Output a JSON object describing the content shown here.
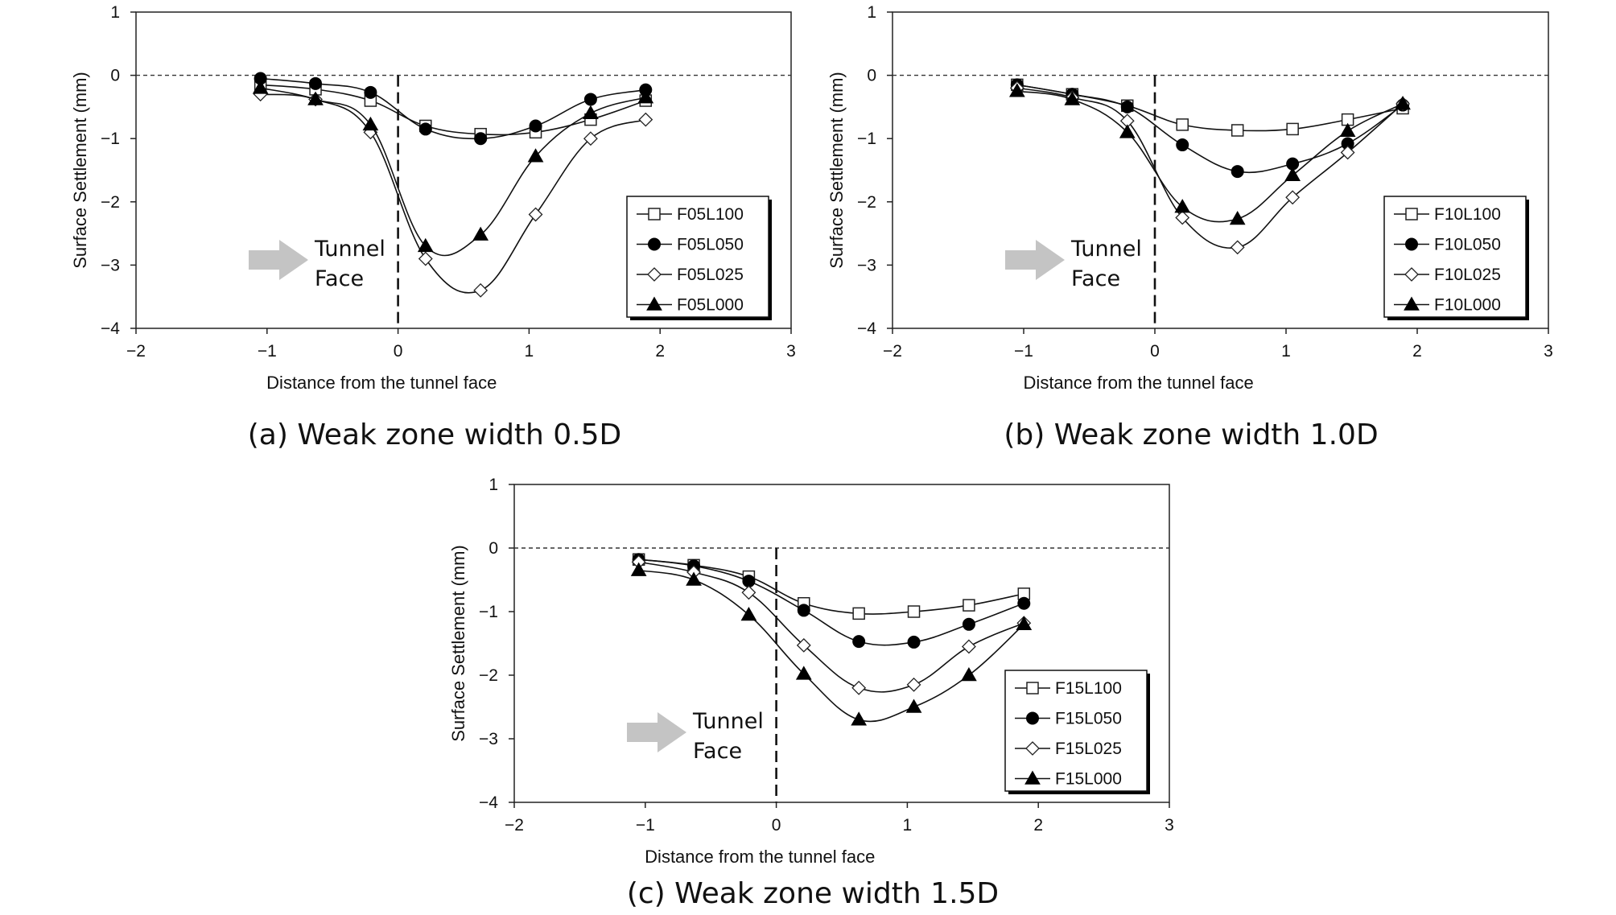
{
  "chart_data": [
    {
      "type": "line",
      "caption": "(a) Weak zone width 0.5D",
      "xlabel": "Distance from the tunnel face",
      "ylabel": "Surface Settlement (mm)",
      "xlim": [
        -2,
        3
      ],
      "ylim": [
        -4,
        1
      ],
      "xticks": [
        "-2",
        "-1",
        "0",
        "1",
        "2",
        "3"
      ],
      "yticks": [
        "-4",
        "-3",
        "-2",
        "-1",
        "0",
        "1"
      ],
      "reference_lines": {
        "y0_dashed": true,
        "x0_dashed": true
      },
      "annotation": {
        "line1": "Tunnel",
        "line2": "Face"
      },
      "legend_position": "lower-right",
      "x": [
        -1.05,
        -0.63,
        -0.21,
        0.21,
        0.63,
        1.05,
        1.47,
        1.89
      ],
      "series": [
        {
          "name": "F05L100",
          "marker": "square-open",
          "values": [
            -0.15,
            -0.22,
            -0.4,
            -0.8,
            -0.93,
            -0.9,
            -0.7,
            -0.4
          ]
        },
        {
          "name": "F05L050",
          "marker": "circle-filled",
          "values": [
            -0.05,
            -0.13,
            -0.27,
            -0.85,
            -1.0,
            -0.8,
            -0.38,
            -0.23
          ]
        },
        {
          "name": "F05L025",
          "marker": "diamond-open",
          "values": [
            -0.3,
            -0.38,
            -0.9,
            -2.9,
            -3.4,
            -2.2,
            -1.0,
            -0.7
          ]
        },
        {
          "name": "F05L000",
          "marker": "triangle-filled",
          "values": [
            -0.2,
            -0.38,
            -0.78,
            -2.7,
            -2.52,
            -1.28,
            -0.6,
            -0.35
          ]
        }
      ]
    },
    {
      "type": "line",
      "caption": "(b) Weak zone width 1.0D",
      "xlabel": "Distance from the tunnel face",
      "ylabel": "Surface Settlement (mm)",
      "xlim": [
        -2,
        3
      ],
      "ylim": [
        -4,
        1
      ],
      "xticks": [
        "-2",
        "-1",
        "0",
        "1",
        "2",
        "3"
      ],
      "yticks": [
        "-4",
        "-3",
        "-2",
        "-1",
        "0",
        "1"
      ],
      "reference_lines": {
        "y0_dashed": true,
        "x0_dashed": true
      },
      "annotation": {
        "line1": "Tunnel",
        "line2": "Face"
      },
      "legend_position": "lower-right",
      "x": [
        -1.05,
        -0.63,
        -0.21,
        0.21,
        0.63,
        1.05,
        1.47,
        1.89
      ],
      "series": [
        {
          "name": "F10L100",
          "marker": "square-open",
          "values": [
            -0.15,
            -0.3,
            -0.48,
            -0.78,
            -0.87,
            -0.85,
            -0.7,
            -0.52
          ]
        },
        {
          "name": "F10L050",
          "marker": "circle-filled",
          "values": [
            -0.15,
            -0.3,
            -0.5,
            -1.1,
            -1.52,
            -1.4,
            -1.08,
            -0.47
          ]
        },
        {
          "name": "F10L025",
          "marker": "diamond-open",
          "values": [
            -0.2,
            -0.35,
            -0.72,
            -2.25,
            -2.72,
            -1.93,
            -1.22,
            -0.45
          ]
        },
        {
          "name": "F10L000",
          "marker": "triangle-filled",
          "values": [
            -0.25,
            -0.38,
            -0.9,
            -2.08,
            -2.27,
            -1.58,
            -0.88,
            -0.45
          ]
        }
      ]
    },
    {
      "type": "line",
      "caption": "(c) Weak zone width 1.5D",
      "xlabel": "Distance from the tunnel face",
      "ylabel": "Surface Settlement (mm)",
      "xlim": [
        -2,
        3
      ],
      "ylim": [
        -4,
        1
      ],
      "xticks": [
        "-2",
        "-1",
        "0",
        "1",
        "2",
        "3"
      ],
      "yticks": [
        "-4",
        "-3",
        "-2",
        "-1",
        "0",
        "1"
      ],
      "reference_lines": {
        "y0_dashed": true,
        "x0_dashed": true
      },
      "annotation": {
        "line1": "Tunnel",
        "line2": "Face"
      },
      "legend_position": "lower-right",
      "x": [
        -1.05,
        -0.63,
        -0.21,
        0.21,
        0.63,
        1.05,
        1.47,
        1.89
      ],
      "series": [
        {
          "name": "F15L100",
          "marker": "square-open",
          "values": [
            -0.18,
            -0.27,
            -0.45,
            -0.87,
            -1.03,
            -1.0,
            -0.9,
            -0.72
          ]
        },
        {
          "name": "F15L050",
          "marker": "circle-filled",
          "values": [
            -0.18,
            -0.28,
            -0.52,
            -0.98,
            -1.47,
            -1.48,
            -1.2,
            -0.87
          ]
        },
        {
          "name": "F15L025",
          "marker": "diamond-open",
          "values": [
            -0.22,
            -0.38,
            -0.7,
            -1.53,
            -2.2,
            -2.15,
            -1.55,
            -1.18
          ]
        },
        {
          "name": "F15L000",
          "marker": "triangle-filled",
          "values": [
            -0.35,
            -0.5,
            -1.05,
            -1.98,
            -2.7,
            -2.5,
            -2.0,
            -1.2
          ]
        }
      ]
    }
  ]
}
